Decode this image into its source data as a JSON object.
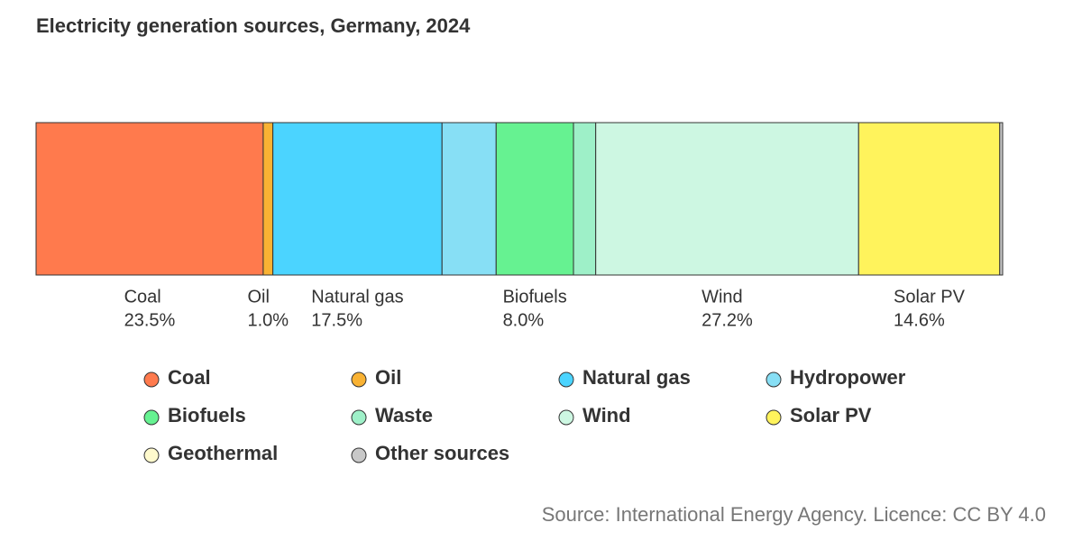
{
  "chart_data": {
    "type": "stacked-bar",
    "title": "Electricity generation sources, Germany, 2024",
    "source": "Source: International Energy Agency. Licence: CC BY 4.0",
    "xlim": [
      0,
      100
    ],
    "series": [
      {
        "name": "Coal",
        "color": "#ff7a4d",
        "values": [
          23.5
        ],
        "value_labels": [
          "23.5%"
        ]
      },
      {
        "name": "Oil",
        "color": "#f9b233",
        "values": [
          1.0
        ],
        "value_labels": [
          "1.0%"
        ]
      },
      {
        "name": "Natural gas",
        "color": "#4bd4ff",
        "values": [
          17.5
        ],
        "value_labels": [
          "17.5%"
        ]
      },
      {
        "name": "Hydropower",
        "color": "#87dff5",
        "values": [
          5.6
        ],
        "value_labels": [
          null
        ]
      },
      {
        "name": "Biofuels",
        "color": "#66f291",
        "values": [
          8.0
        ],
        "value_labels": [
          "8.0%"
        ]
      },
      {
        "name": "Waste",
        "color": "#9ef0c8",
        "values": [
          2.3
        ],
        "value_labels": [
          null
        ]
      },
      {
        "name": "Wind",
        "color": "#cdf7e2",
        "values": [
          27.2
        ],
        "value_labels": [
          "27.2%"
        ]
      },
      {
        "name": "Solar PV",
        "color": "#fff35c",
        "values": [
          14.6
        ],
        "value_labels": [
          "14.6%"
        ]
      },
      {
        "name": "Geothermal",
        "color": "#fffacd",
        "values": [
          0.0
        ],
        "value_labels": [
          null
        ]
      },
      {
        "name": "Other sources",
        "color": "#c8c8c8",
        "values": [
          0.3
        ],
        "value_labels": [
          null
        ]
      }
    ]
  }
}
